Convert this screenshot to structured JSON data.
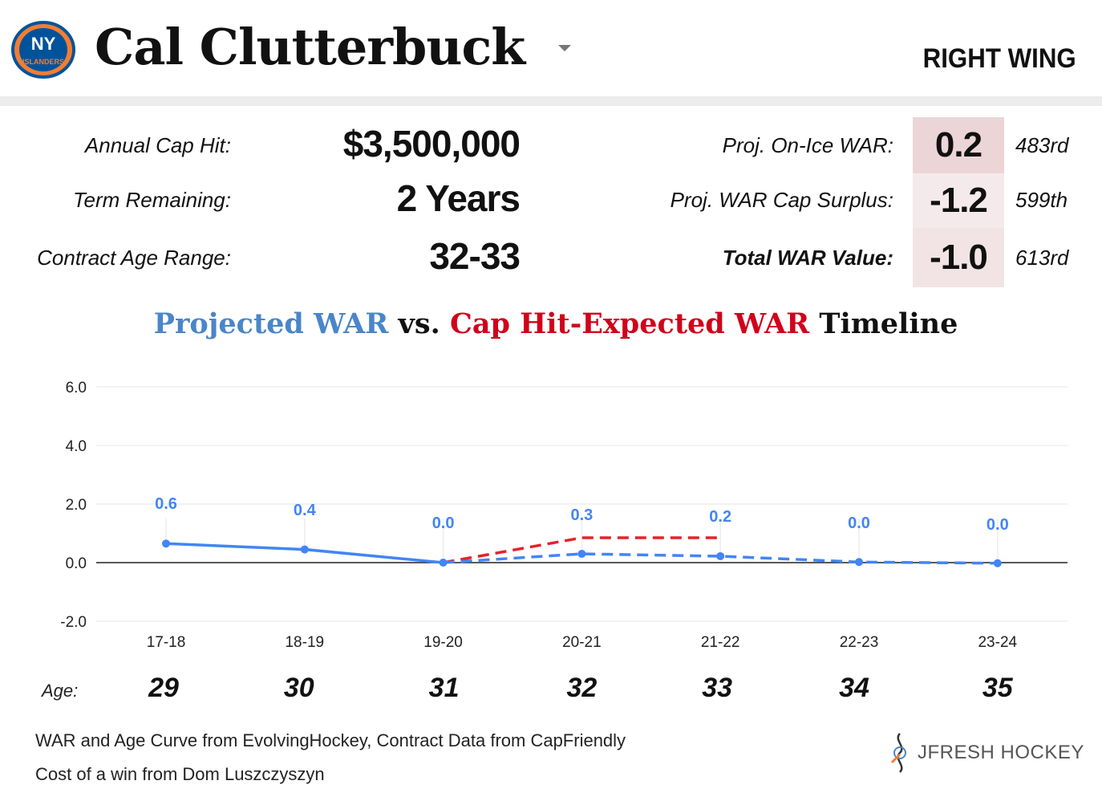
{
  "header": {
    "player_name": "Cal Clutterbuck",
    "position": "RIGHT WING",
    "team_logo": "ny-islanders-logo",
    "logo_text": "NY",
    "logo_subtext": "ISLANDERS"
  },
  "contract": {
    "cap_hit_label": "Annual Cap Hit:",
    "cap_hit_value": "$3,500,000",
    "term_label": "Term Remaining:",
    "term_value": "2 Years",
    "age_range_label": "Contract Age Range:",
    "age_range_value": "32-33"
  },
  "war": {
    "on_ice_label": "Proj. On-Ice WAR:",
    "on_ice_value": "0.2",
    "on_ice_rank": "483rd",
    "surplus_label": "Proj. WAR Cap Surplus:",
    "surplus_value": "-1.2",
    "surplus_rank": "599th",
    "total_label": "Total WAR Value:",
    "total_value": "-1.0",
    "total_rank": "613rd"
  },
  "chart_title": {
    "part1": "Projected WAR",
    "part2": " vs. ",
    "part3": "Cap Hit-Expected WAR",
    "part4": " Timeline"
  },
  "colors": {
    "projected": "#4285f4",
    "expected": "#e8202a",
    "title_blue": "#4a86c8",
    "title_red": "#d0021b",
    "cell_dark": "#ecd5d7",
    "cell_light": "#f5eaeb"
  },
  "chart_data": {
    "type": "line",
    "categories": [
      "17-18",
      "18-19",
      "19-20",
      "20-21",
      "21-22",
      "22-23",
      "23-24"
    ],
    "ylim": [
      -2,
      6
    ],
    "yticks": [
      -2,
      0,
      2,
      4,
      6
    ],
    "ytick_labels": [
      "-2.0",
      "0.0",
      "2.0",
      "4.0",
      "6.0"
    ],
    "grid": true,
    "series": [
      {
        "name": "Projected WAR",
        "values": [
          0.65,
          0.45,
          0.0,
          0.3,
          0.22,
          0.02,
          -0.02
        ],
        "labels": [
          "0.6",
          "0.4",
          "0.0",
          "0.3",
          "0.2",
          "0.0",
          "0.0"
        ],
        "style": "solid through 19-20, dashed after"
      },
      {
        "name": "Cap Hit-Expected WAR",
        "values": [
          null,
          null,
          0.0,
          0.85,
          0.85,
          null,
          null
        ],
        "style": "dashed"
      }
    ]
  },
  "ages": {
    "label": "Age:",
    "values": [
      "29",
      "30",
      "31",
      "32",
      "33",
      "34",
      "35"
    ]
  },
  "footer": {
    "source_line1": "WAR and Age Curve from EvolvingHockey, Contract Data from CapFriendly",
    "source_line2": "Cost of a win from Dom Luszczyszyn",
    "brand": "JFRESH HOCKEY"
  }
}
